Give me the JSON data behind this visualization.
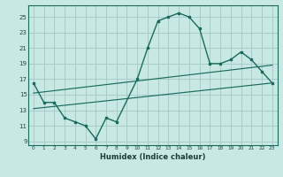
{
  "xlabel": "Humidex (Indice chaleur)",
  "bg_color": "#c8e8e4",
  "grid_color": "#a8ccc8",
  "line_color": "#1a6b5e",
  "xlim": [
    -0.5,
    23.5
  ],
  "ylim": [
    8.5,
    26.5
  ],
  "xticks": [
    0,
    1,
    2,
    3,
    4,
    5,
    6,
    7,
    8,
    9,
    10,
    11,
    12,
    13,
    14,
    15,
    16,
    17,
    18,
    19,
    20,
    21,
    22,
    23
  ],
  "yticks": [
    9,
    11,
    13,
    15,
    17,
    19,
    21,
    23,
    25
  ],
  "curve1_x": [
    0,
    1,
    2,
    3,
    4,
    5,
    6,
    7,
    8,
    10,
    11,
    12,
    13,
    14,
    15,
    16,
    17,
    18,
    19,
    20,
    21,
    22,
    23
  ],
  "curve1_y": [
    16.5,
    14.0,
    14.0,
    12.0,
    11.5,
    11.0,
    9.3,
    12.0,
    11.5,
    17.0,
    21.0,
    24.5,
    25.0,
    25.5,
    25.0,
    23.5,
    19.0,
    19.0,
    19.5,
    20.5,
    19.5,
    18.0,
    16.5
  ],
  "line2_x": [
    0,
    23
  ],
  "line2_y": [
    15.2,
    18.8
  ],
  "line3_x": [
    0,
    23
  ],
  "line3_y": [
    13.2,
    16.5
  ]
}
